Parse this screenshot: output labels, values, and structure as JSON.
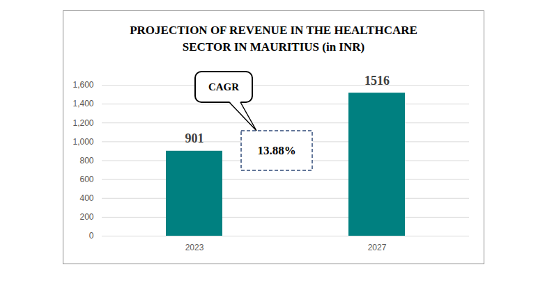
{
  "chart_data": {
    "type": "bar",
    "title": "PROJECTION OF REVENUE IN THE HEALTHCARE SECTOR IN MAURITIUS (in INR)",
    "categories": [
      "2023",
      "2027"
    ],
    "values": [
      901,
      1516
    ],
    "color": "#008080",
    "ylim": [
      0,
      1600
    ],
    "yticks": [
      0,
      200,
      400,
      600,
      800,
      1000,
      1200,
      1400,
      1600
    ],
    "grid": true,
    "data_labels": true,
    "annotations": [
      "CAGR",
      "13.88%"
    ]
  }
}
